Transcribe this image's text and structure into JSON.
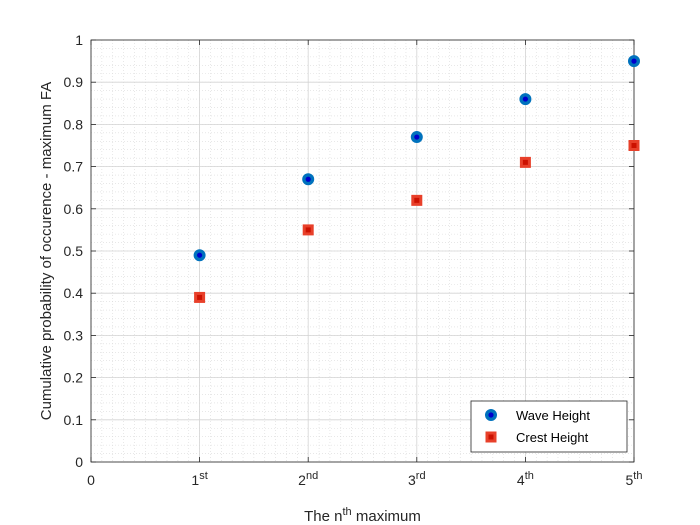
{
  "chart_data": {
    "type": "scatter",
    "xlabel": {
      "prefix": "The n",
      "sup": "th",
      "suffix": " maximum"
    },
    "ylabel": "Cumulative probability of occurence - maximum FA",
    "xlim": [
      0,
      5
    ],
    "ylim": [
      0,
      1
    ],
    "grid": true,
    "minor_grid": true,
    "legend_position": "bottom-right",
    "x_ticks": [
      {
        "value": 0,
        "base": "0",
        "sup": ""
      },
      {
        "value": 1,
        "base": "1",
        "sup": "st"
      },
      {
        "value": 2,
        "base": "2",
        "sup": "nd"
      },
      {
        "value": 3,
        "base": "3",
        "sup": "rd"
      },
      {
        "value": 4,
        "base": "4",
        "sup": "th"
      },
      {
        "value": 5,
        "base": "5",
        "sup": "th"
      }
    ],
    "y_ticks": [
      0,
      0.1,
      0.2,
      0.3,
      0.4,
      0.5,
      0.6,
      0.7,
      0.8,
      0.9,
      1
    ],
    "y_tick_labels": [
      "0",
      "0.1",
      "0.2",
      "0.3",
      "0.4",
      "0.5",
      "0.6",
      "0.7",
      "0.8",
      "0.9",
      "1"
    ],
    "series": [
      {
        "name": "Wave Height",
        "marker": "circle",
        "color": "#0072BD",
        "center_color": "#0000CC",
        "x": [
          1,
          2,
          3,
          4,
          5
        ],
        "values": [
          0.49,
          0.67,
          0.77,
          0.86,
          0.95
        ]
      },
      {
        "name": "Crest Height",
        "marker": "square",
        "color": "#E8402A",
        "center_color": "#CC1100",
        "x": [
          1,
          2,
          3,
          4,
          5
        ],
        "values": [
          0.39,
          0.55,
          0.62,
          0.71,
          0.75
        ]
      }
    ]
  }
}
